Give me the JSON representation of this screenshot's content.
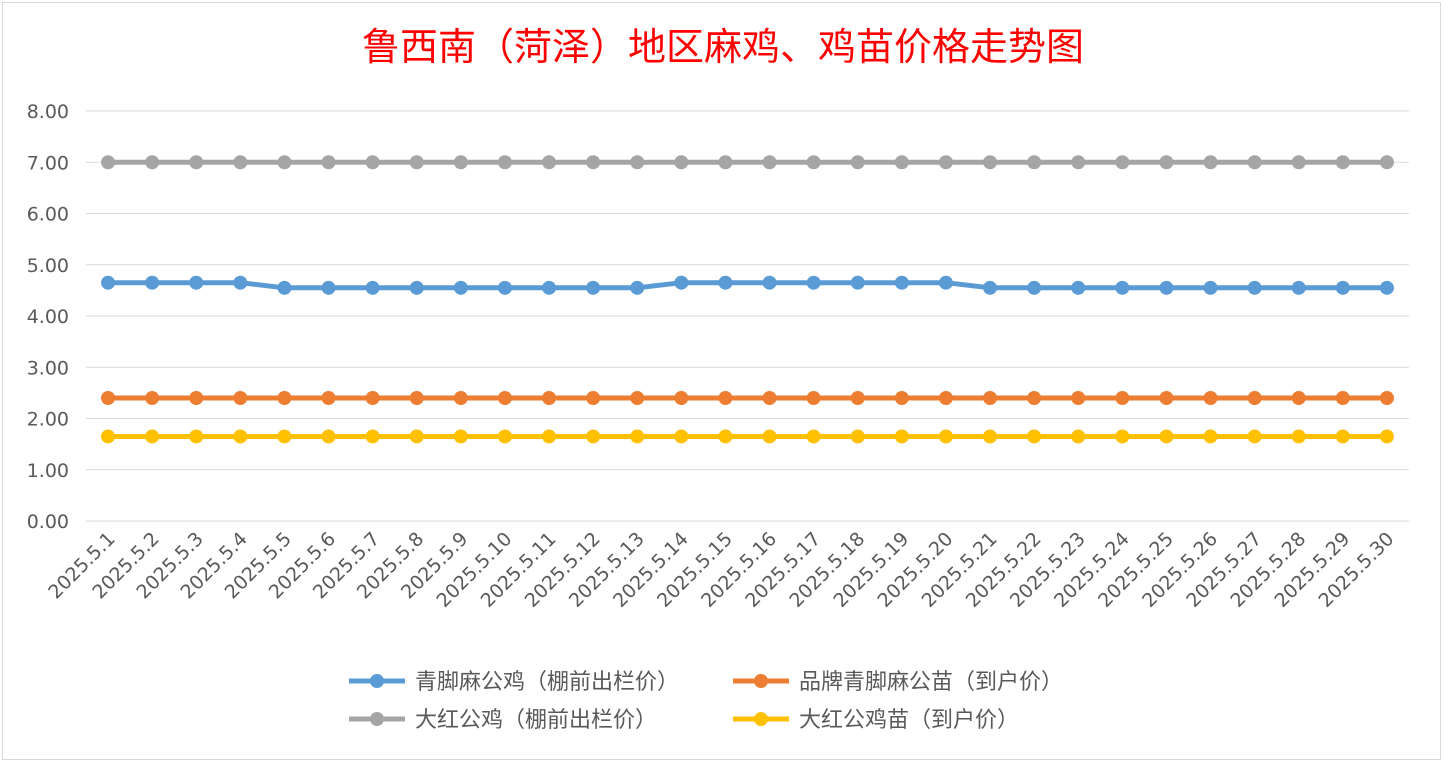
{
  "chart_data": {
    "type": "line",
    "title": "鲁西南（菏泽）地区麻鸡、鸡苗价格走势图",
    "xlabel": "",
    "ylabel": "",
    "ylim": [
      0,
      8
    ],
    "y_ticks": [
      "0.00",
      "1.00",
      "2.00",
      "3.00",
      "4.00",
      "5.00",
      "6.00",
      "7.00",
      "8.00"
    ],
    "grid": true,
    "legend_position": "bottom",
    "categories": [
      "2025.5.1",
      "2025.5.2",
      "2025.5.3",
      "2025.5.4",
      "2025.5.5",
      "2025.5.6",
      "2025.5.7",
      "2025.5.8",
      "2025.5.9",
      "2025.5.10",
      "2025.5.11",
      "2025.5.12",
      "2025.5.13",
      "2025.5.14",
      "2025.5.15",
      "2025.5.16",
      "2025.5.17",
      "2025.5.18",
      "2025.5.19",
      "2025.5.20",
      "2025.5.21",
      "2025.5.22",
      "2025.5.23",
      "2025.5.24",
      "2025.5.25",
      "2025.5.26",
      "2025.5.27",
      "2025.5.28",
      "2025.5.29",
      "2025.5.30"
    ],
    "series": [
      {
        "name": "青脚麻公鸡（棚前出栏价）",
        "color": "#5b9bd5",
        "values": [
          4.65,
          4.65,
          4.65,
          4.65,
          4.55,
          4.55,
          4.55,
          4.55,
          4.55,
          4.55,
          4.55,
          4.55,
          4.55,
          4.65,
          4.65,
          4.65,
          4.65,
          4.65,
          4.65,
          4.65,
          4.55,
          4.55,
          4.55,
          4.55,
          4.55,
          4.55,
          4.55,
          4.55,
          4.55,
          4.55
        ]
      },
      {
        "name": "品牌青脚麻公苗（到户价）",
        "color": "#ed7d31",
        "values": [
          2.4,
          2.4,
          2.4,
          2.4,
          2.4,
          2.4,
          2.4,
          2.4,
          2.4,
          2.4,
          2.4,
          2.4,
          2.4,
          2.4,
          2.4,
          2.4,
          2.4,
          2.4,
          2.4,
          2.4,
          2.4,
          2.4,
          2.4,
          2.4,
          2.4,
          2.4,
          2.4,
          2.4,
          2.4,
          2.4
        ]
      },
      {
        "name": "大红公鸡（棚前出栏价）",
        "color": "#a5a5a5",
        "values": [
          7.0,
          7.0,
          7.0,
          7.0,
          7.0,
          7.0,
          7.0,
          7.0,
          7.0,
          7.0,
          7.0,
          7.0,
          7.0,
          7.0,
          7.0,
          7.0,
          7.0,
          7.0,
          7.0,
          7.0,
          7.0,
          7.0,
          7.0,
          7.0,
          7.0,
          7.0,
          7.0,
          7.0,
          7.0,
          7.0
        ]
      },
      {
        "name": "大红公鸡苗（到户价）",
        "color": "#ffc000",
        "values": [
          1.65,
          1.65,
          1.65,
          1.65,
          1.65,
          1.65,
          1.65,
          1.65,
          1.65,
          1.65,
          1.65,
          1.65,
          1.65,
          1.65,
          1.65,
          1.65,
          1.65,
          1.65,
          1.65,
          1.65,
          1.65,
          1.65,
          1.65,
          1.65,
          1.65,
          1.65,
          1.65,
          1.65,
          1.65,
          1.65
        ]
      }
    ]
  }
}
